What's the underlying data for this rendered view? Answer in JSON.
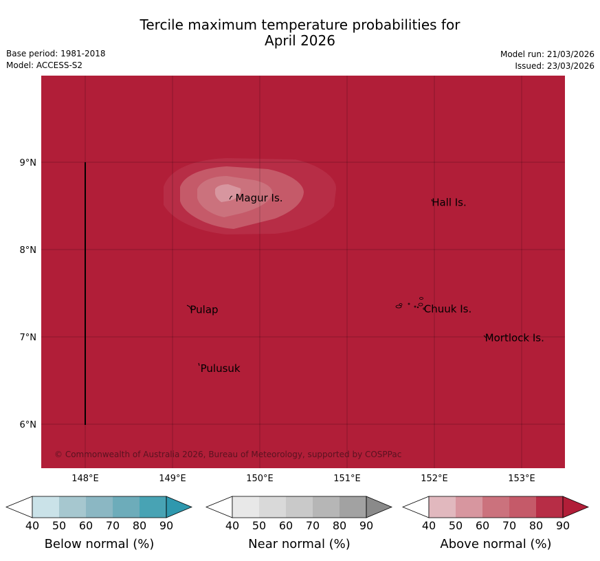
{
  "title_line1": "Tercile maximum temperature probabilities for",
  "title_line2": "April 2026",
  "base_period": "Base period: 1981-2018",
  "model": "Model: ACCESS-S2",
  "model_run": "Model run: 21/03/2026",
  "issued": "Issued: 23/03/2026",
  "copyright": "© Commonwealth of Australia 2026, Bureau of Meteorology, supported by COSPPac",
  "map": {
    "lon_ticks": [
      "148°E",
      "149°E",
      "150°E",
      "151°E",
      "152°E",
      "153°E"
    ],
    "lat_ticks": [
      "9°N",
      "8°N",
      "7°N",
      "6°N"
    ],
    "background_color": "#b11e38",
    "places": [
      {
        "name": "Magur Is.",
        "lon": 149.72,
        "lat": 8.55
      },
      {
        "name": "Hall Is.",
        "lon": 151.97,
        "lat": 8.5
      },
      {
        "name": "Pulap",
        "lon": 149.2,
        "lat": 7.27
      },
      {
        "name": "Chuuk Is.",
        "lon": 151.88,
        "lat": 7.28
      },
      {
        "name": "Mortlock Is.",
        "lon": 152.58,
        "lat": 6.95
      },
      {
        "name": "Pulusuk",
        "lon": 149.32,
        "lat": 6.6
      }
    ]
  },
  "legends": [
    {
      "label": "Below normal (%)",
      "ticks": [
        "40",
        "50",
        "60",
        "70",
        "80",
        "90"
      ],
      "colors": [
        "#ffffff",
        "#cae2e8",
        "#a6c7cf",
        "#8bb7c3",
        "#6dacba",
        "#48a3b4",
        "#2f98ae"
      ]
    },
    {
      "label": "Near normal (%)",
      "ticks": [
        "40",
        "50",
        "60",
        "70",
        "80",
        "90"
      ],
      "colors": [
        "#ffffff",
        "#e8e8e8",
        "#d9d9d9",
        "#c9c9c9",
        "#b6b6b6",
        "#a2a2a2",
        "#8a8a8a"
      ]
    },
    {
      "label": "Above normal (%)",
      "ticks": [
        "40",
        "50",
        "60",
        "70",
        "80",
        "90"
      ],
      "colors": [
        "#ffffff",
        "#e1b8be",
        "#d7969f",
        "#cb727d",
        "#c55a69",
        "#b72d46",
        "#b11e38"
      ]
    }
  ]
}
